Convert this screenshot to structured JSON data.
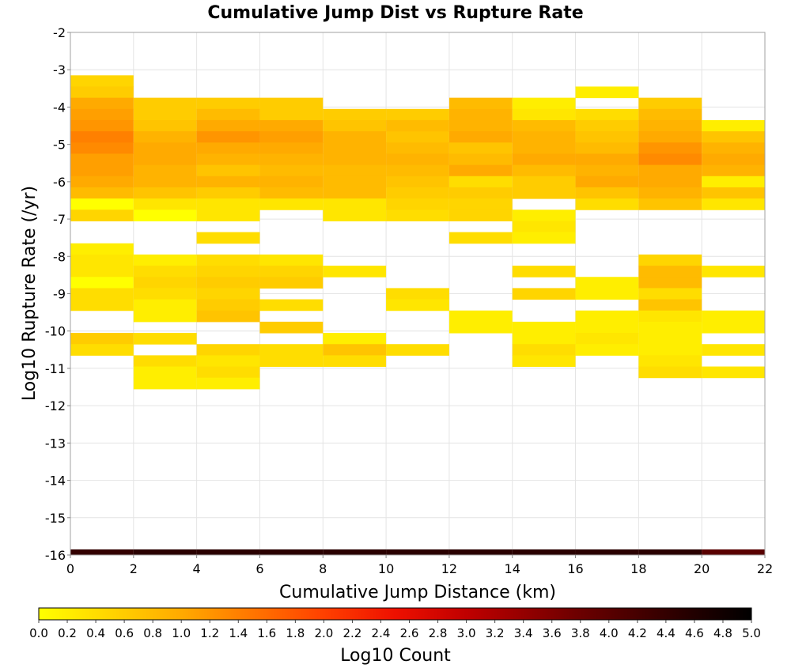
{
  "chart_data": {
    "type": "heatmap",
    "title": "Cumulative Jump Dist vs Rupture Rate",
    "xlabel": "Cumulative Jump Distance (km)",
    "ylabel": "Log10 Rupture Rate (/yr)",
    "xlim": [
      0,
      22
    ],
    "ylim": [
      -16,
      -2
    ],
    "x_ticks": [
      0,
      2,
      4,
      6,
      8,
      10,
      12,
      14,
      16,
      18,
      20,
      22
    ],
    "y_ticks": [
      -2,
      -3,
      -4,
      -5,
      -6,
      -7,
      -8,
      -9,
      -10,
      -11,
      -12,
      -13,
      -14,
      -15,
      -16
    ],
    "grid": true,
    "x_bin_width": 2,
    "y_bin_height": 0.3,
    "colorbar": {
      "label": "Log10 Count",
      "range": [
        0,
        5
      ],
      "ticks": [
        "0.0",
        "0.2",
        "0.4",
        "0.6",
        "0.8",
        "1.0",
        "1.2",
        "1.4",
        "1.6",
        "1.8",
        "2.0",
        "2.2",
        "2.4",
        "2.6",
        "2.8",
        "3.0",
        "3.2",
        "3.4",
        "3.6",
        "3.8",
        "4.0",
        "4.2",
        "4.4",
        "4.6",
        "4.8",
        "5.0"
      ],
      "colormap": "reverse-hot (yellow to red to black)"
    },
    "columns": [
      {
        "x": 0,
        "cells": [
          {
            "y": -3.3,
            "v": 0.5
          },
          {
            "y": -3.6,
            "v": 0.6
          },
          {
            "y": -3.9,
            "v": 1.0
          },
          {
            "y": -4.2,
            "v": 1.1
          },
          {
            "y": -4.5,
            "v": 1.2
          },
          {
            "y": -4.8,
            "v": 1.4
          },
          {
            "y": -5.1,
            "v": 1.3
          },
          {
            "y": -5.4,
            "v": 1.1
          },
          {
            "y": -5.7,
            "v": 1.1
          },
          {
            "y": -6.0,
            "v": 1.0
          },
          {
            "y": -6.3,
            "v": 0.8
          },
          {
            "y": -6.6,
            "v": 0.0
          },
          {
            "y": -6.9,
            "v": 0.5
          },
          {
            "y": -7.8,
            "v": 0.2
          },
          {
            "y": -8.1,
            "v": 0.3
          },
          {
            "y": -8.4,
            "v": 0.3
          },
          {
            "y": -8.7,
            "v": 0.0
          },
          {
            "y": -9.0,
            "v": 0.4
          },
          {
            "y": -9.3,
            "v": 0.4
          },
          {
            "y": -10.2,
            "v": 0.6
          },
          {
            "y": -10.5,
            "v": 0.4
          }
        ]
      },
      {
        "x": 2,
        "cells": [
          {
            "y": -3.9,
            "v": 0.6
          },
          {
            "y": -4.2,
            "v": 0.6
          },
          {
            "y": -4.5,
            "v": 0.7
          },
          {
            "y": -4.8,
            "v": 0.9
          },
          {
            "y": -5.1,
            "v": 1.0
          },
          {
            "y": -5.4,
            "v": 1.0
          },
          {
            "y": -5.7,
            "v": 0.9
          },
          {
            "y": -6.0,
            "v": 0.9
          },
          {
            "y": -6.3,
            "v": 0.7
          },
          {
            "y": -6.6,
            "v": 0.3
          },
          {
            "y": -6.9,
            "v": 0.0
          },
          {
            "y": -8.1,
            "v": 0.2
          },
          {
            "y": -8.4,
            "v": 0.4
          },
          {
            "y": -8.7,
            "v": 0.5
          },
          {
            "y": -9.0,
            "v": 0.4
          },
          {
            "y": -9.3,
            "v": 0.2
          },
          {
            "y": -9.6,
            "v": 0.2
          },
          {
            "y": -10.2,
            "v": 0.4
          },
          {
            "y": -10.8,
            "v": 0.4
          },
          {
            "y": -11.1,
            "v": 0.2
          },
          {
            "y": -11.4,
            "v": 0.2
          }
        ]
      },
      {
        "x": 4,
        "cells": [
          {
            "y": -3.9,
            "v": 0.6
          },
          {
            "y": -4.2,
            "v": 0.8
          },
          {
            "y": -4.5,
            "v": 1.0
          },
          {
            "y": -4.8,
            "v": 1.2
          },
          {
            "y": -5.1,
            "v": 1.0
          },
          {
            "y": -5.4,
            "v": 0.9
          },
          {
            "y": -5.7,
            "v": 0.7
          },
          {
            "y": -6.0,
            "v": 0.9
          },
          {
            "y": -6.3,
            "v": 0.6
          },
          {
            "y": -6.6,
            "v": 0.3
          },
          {
            "y": -6.9,
            "v": 0.3
          },
          {
            "y": -7.5,
            "v": 0.4
          },
          {
            "y": -8.1,
            "v": 0.4
          },
          {
            "y": -8.4,
            "v": 0.5
          },
          {
            "y": -8.7,
            "v": 0.6
          },
          {
            "y": -9.0,
            "v": 0.5
          },
          {
            "y": -9.3,
            "v": 0.6
          },
          {
            "y": -9.6,
            "v": 0.7
          },
          {
            "y": -10.5,
            "v": 0.5
          },
          {
            "y": -10.8,
            "v": 0.3
          },
          {
            "y": -11.1,
            "v": 0.4
          },
          {
            "y": -11.4,
            "v": 0.2
          }
        ]
      },
      {
        "x": 6,
        "cells": [
          {
            "y": -3.9,
            "v": 0.6
          },
          {
            "y": -4.2,
            "v": 0.6
          },
          {
            "y": -4.5,
            "v": 1.0
          },
          {
            "y": -4.8,
            "v": 1.1
          },
          {
            "y": -5.1,
            "v": 1.0
          },
          {
            "y": -5.4,
            "v": 0.9
          },
          {
            "y": -5.7,
            "v": 0.8
          },
          {
            "y": -6.0,
            "v": 0.9
          },
          {
            "y": -6.3,
            "v": 0.8
          },
          {
            "y": -6.6,
            "v": 0.3
          },
          {
            "y": -8.1,
            "v": 0.3
          },
          {
            "y": -8.4,
            "v": 0.5
          },
          {
            "y": -8.7,
            "v": 0.6
          },
          {
            "y": -9.3,
            "v": 0.4
          },
          {
            "y": -9.9,
            "v": 0.6
          },
          {
            "y": -10.5,
            "v": 0.4
          },
          {
            "y": -10.8,
            "v": 0.4
          }
        ]
      },
      {
        "x": 8,
        "cells": [
          {
            "y": -4.2,
            "v": 0.6
          },
          {
            "y": -4.5,
            "v": 0.7
          },
          {
            "y": -4.8,
            "v": 0.9
          },
          {
            "y": -5.1,
            "v": 0.9
          },
          {
            "y": -5.4,
            "v": 0.9
          },
          {
            "y": -5.7,
            "v": 0.8
          },
          {
            "y": -6.0,
            "v": 0.8
          },
          {
            "y": -6.3,
            "v": 0.8
          },
          {
            "y": -6.6,
            "v": 0.3
          },
          {
            "y": -6.9,
            "v": 0.3
          },
          {
            "y": -8.4,
            "v": 0.3
          },
          {
            "y": -10.2,
            "v": 0.2
          },
          {
            "y": -10.5,
            "v": 0.7
          },
          {
            "y": -10.8,
            "v": 0.4
          }
        ]
      },
      {
        "x": 10,
        "cells": [
          {
            "y": -4.2,
            "v": 0.6
          },
          {
            "y": -4.5,
            "v": 0.8
          },
          {
            "y": -4.8,
            "v": 0.7
          },
          {
            "y": -5.1,
            "v": 0.8
          },
          {
            "y": -5.4,
            "v": 0.9
          },
          {
            "y": -5.7,
            "v": 0.8
          },
          {
            "y": -6.0,
            "v": 0.7
          },
          {
            "y": -6.3,
            "v": 0.6
          },
          {
            "y": -6.6,
            "v": 0.5
          },
          {
            "y": -6.9,
            "v": 0.4
          },
          {
            "y": -9.0,
            "v": 0.4
          },
          {
            "y": -9.3,
            "v": 0.3
          },
          {
            "y": -10.5,
            "v": 0.4
          }
        ]
      },
      {
        "x": 12,
        "cells": [
          {
            "y": -3.9,
            "v": 0.8
          },
          {
            "y": -4.2,
            "v": 0.9
          },
          {
            "y": -4.5,
            "v": 0.9
          },
          {
            "y": -4.8,
            "v": 1.0
          },
          {
            "y": -5.1,
            "v": 0.7
          },
          {
            "y": -5.4,
            "v": 0.8
          },
          {
            "y": -5.7,
            "v": 1.0
          },
          {
            "y": -6.0,
            "v": 0.4
          },
          {
            "y": -6.3,
            "v": 0.6
          },
          {
            "y": -6.6,
            "v": 0.5
          },
          {
            "y": -6.9,
            "v": 0.5
          },
          {
            "y": -7.5,
            "v": 0.4
          },
          {
            "y": -9.6,
            "v": 0.2
          },
          {
            "y": -9.9,
            "v": 0.2
          }
        ]
      },
      {
        "x": 14,
        "cells": [
          {
            "y": -3.9,
            "v": 0.2
          },
          {
            "y": -4.2,
            "v": 0.3
          },
          {
            "y": -4.5,
            "v": 0.8
          },
          {
            "y": -4.8,
            "v": 0.9
          },
          {
            "y": -5.1,
            "v": 0.9
          },
          {
            "y": -5.4,
            "v": 1.0
          },
          {
            "y": -5.7,
            "v": 0.8
          },
          {
            "y": -6.0,
            "v": 0.6
          },
          {
            "y": -6.3,
            "v": 0.6
          },
          {
            "y": -6.9,
            "v": 0.2
          },
          {
            "y": -7.2,
            "v": 0.3
          },
          {
            "y": -7.5,
            "v": 0.2
          },
          {
            "y": -8.4,
            "v": 0.4
          },
          {
            "y": -9.0,
            "v": 0.5
          },
          {
            "y": -9.9,
            "v": 0.2
          },
          {
            "y": -10.2,
            "v": 0.2
          },
          {
            "y": -10.5,
            "v": 0.4
          },
          {
            "y": -10.8,
            "v": 0.3
          }
        ]
      },
      {
        "x": 16,
        "cells": [
          {
            "y": -3.6,
            "v": 0.2
          },
          {
            "y": -4.2,
            "v": 0.4
          },
          {
            "y": -4.5,
            "v": 0.6
          },
          {
            "y": -4.8,
            "v": 0.7
          },
          {
            "y": -5.1,
            "v": 0.8
          },
          {
            "y": -5.4,
            "v": 1.0
          },
          {
            "y": -5.7,
            "v": 0.9
          },
          {
            "y": -6.0,
            "v": 1.0
          },
          {
            "y": -6.3,
            "v": 0.7
          },
          {
            "y": -6.6,
            "v": 0.4
          },
          {
            "y": -8.7,
            "v": 0.2
          },
          {
            "y": -9.0,
            "v": 0.2
          },
          {
            "y": -9.6,
            "v": 0.2
          },
          {
            "y": -9.9,
            "v": 0.2
          },
          {
            "y": -10.2,
            "v": 0.3
          },
          {
            "y": -10.5,
            "v": 0.2
          }
        ]
      },
      {
        "x": 18,
        "cells": [
          {
            "y": -3.9,
            "v": 0.6
          },
          {
            "y": -4.2,
            "v": 0.8
          },
          {
            "y": -4.5,
            "v": 0.9
          },
          {
            "y": -4.8,
            "v": 1.0
          },
          {
            "y": -5.1,
            "v": 1.2
          },
          {
            "y": -5.4,
            "v": 1.3
          },
          {
            "y": -5.7,
            "v": 1.0
          },
          {
            "y": -6.0,
            "v": 1.0
          },
          {
            "y": -6.3,
            "v": 0.9
          },
          {
            "y": -6.6,
            "v": 0.7
          },
          {
            "y": -8.1,
            "v": 0.5
          },
          {
            "y": -8.4,
            "v": 0.8
          },
          {
            "y": -8.7,
            "v": 0.8
          },
          {
            "y": -9.0,
            "v": 0.4
          },
          {
            "y": -9.3,
            "v": 0.7
          },
          {
            "y": -9.6,
            "v": 0.3
          },
          {
            "y": -9.9,
            "v": 0.2
          },
          {
            "y": -10.2,
            "v": 0.2
          },
          {
            "y": -10.5,
            "v": 0.2
          },
          {
            "y": -10.8,
            "v": 0.3
          },
          {
            "y": -11.1,
            "v": 0.4
          }
        ]
      },
      {
        "x": 20,
        "cells": [
          {
            "y": -4.5,
            "v": 0.2
          },
          {
            "y": -4.8,
            "v": 0.7
          },
          {
            "y": -5.1,
            "v": 0.9
          },
          {
            "y": -5.4,
            "v": 1.0
          },
          {
            "y": -5.7,
            "v": 0.9
          },
          {
            "y": -6.0,
            "v": 0.2
          },
          {
            "y": -6.3,
            "v": 0.7
          },
          {
            "y": -6.6,
            "v": 0.3
          },
          {
            "y": -8.4,
            "v": 0.3
          },
          {
            "y": -9.6,
            "v": 0.2
          },
          {
            "y": -9.9,
            "v": 0.2
          },
          {
            "y": -10.5,
            "v": 0.3
          },
          {
            "y": -11.1,
            "v": 0.3
          }
        ]
      }
    ],
    "bottom_row": {
      "y": -16.0,
      "v": [
        4.4,
        4.5,
        4.5,
        4.5,
        4.5,
        4.5,
        4.5,
        4.5,
        4.5,
        4.5,
        4.0
      ]
    }
  }
}
